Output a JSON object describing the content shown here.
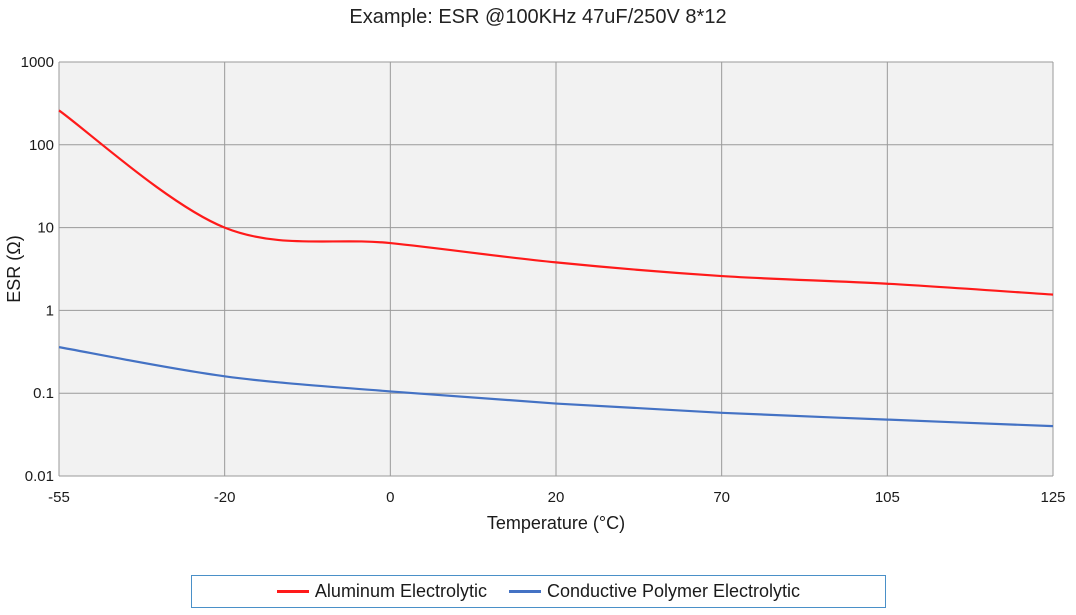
{
  "chart_data": {
    "type": "line",
    "title": "Example: ESR @100KHz 47uF/250V 8*12",
    "xlabel": "Temperature (°C)",
    "ylabel": "ESR (Ω)",
    "y_scale": "log",
    "ylim": [
      0.01,
      1000
    ],
    "y_ticks": [
      "1000",
      "100",
      "10",
      "1",
      "0.1",
      "0.01"
    ],
    "categories": [
      "-55",
      "-20",
      "0",
      "20",
      "70",
      "105",
      "125"
    ],
    "grid": true,
    "legend_position": "bottom",
    "series": [
      {
        "name": "Aluminum Electrolytic",
        "color": "#ff1a1a",
        "points": [
          {
            "x": "-55",
            "y": 260
          },
          {
            "x": "-20",
            "y": 10
          },
          {
            "x": "0",
            "y": 6.5
          },
          {
            "x": "20",
            "y": 3.8
          },
          {
            "x": "70",
            "y": 2.6
          },
          {
            "x": "105",
            "y": 2.1
          },
          {
            "x": "125",
            "y": 1.55
          }
        ]
      },
      {
        "name": "Conductive Polymer Electrolytic",
        "color": "#4472c4",
        "points": [
          {
            "x": "-55",
            "y": 0.36
          },
          {
            "x": "-20",
            "y": 0.16
          },
          {
            "x": "0",
            "y": 0.105
          },
          {
            "x": "20",
            "y": 0.075
          },
          {
            "x": "70",
            "y": 0.058
          },
          {
            "x": "105",
            "y": 0.048
          },
          {
            "x": "125",
            "y": 0.04
          }
        ]
      }
    ]
  }
}
